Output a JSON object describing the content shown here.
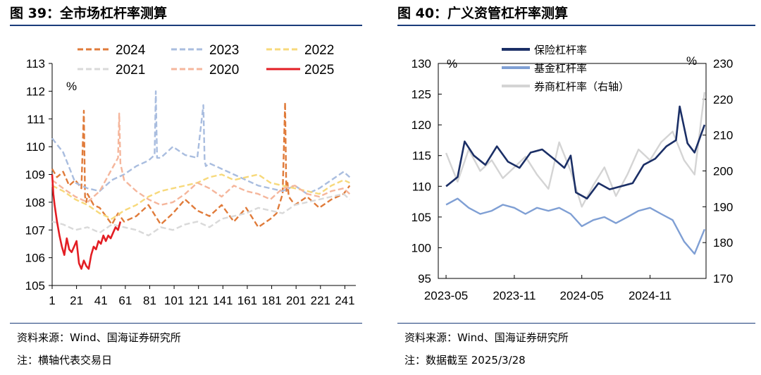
{
  "left": {
    "title": "图 39：全市场杠杆率测算",
    "source": "资料来源：Wind、国海证券研究所",
    "note": "注：横轴代表交易日",
    "chart_data": {
      "type": "line",
      "ylabel": "%",
      "ylim": [
        105,
        113
      ],
      "yticks": [
        105,
        106,
        107,
        108,
        109,
        110,
        111,
        112,
        113
      ],
      "xlim": [
        1,
        250
      ],
      "xticks": [
        1,
        21,
        41,
        61,
        81,
        101,
        121,
        141,
        161,
        181,
        201,
        221,
        241
      ],
      "legend_position": "top",
      "series": [
        {
          "name": "2024",
          "style": "dashed",
          "color": "#e07b3a",
          "x": [
            1,
            5,
            10,
            15,
            20,
            25,
            27,
            28,
            29,
            30,
            35,
            40,
            45,
            50,
            55,
            60,
            70,
            80,
            90,
            100,
            110,
            120,
            130,
            140,
            150,
            160,
            170,
            180,
            185,
            190,
            192,
            193,
            194,
            195,
            200,
            210,
            220,
            230,
            240,
            245
          ],
          "y": [
            109.2,
            108.9,
            109.1,
            108.6,
            108.8,
            108.5,
            111.3,
            108.2,
            108.0,
            108.3,
            107.9,
            107.8,
            107.5,
            107.2,
            107.6,
            107.3,
            107.5,
            107.9,
            107.2,
            107.6,
            108.1,
            107.7,
            107.5,
            107.9,
            107.3,
            107.8,
            107.1,
            107.4,
            107.6,
            108.3,
            111.6,
            108.4,
            108.7,
            108.2,
            107.9,
            108.2,
            107.8,
            108.1,
            108.3,
            108.6
          ]
        },
        {
          "name": "2023",
          "style": "dashed",
          "color": "#a9bddf",
          "x": [
            1,
            10,
            20,
            30,
            40,
            50,
            60,
            70,
            80,
            85,
            86,
            87,
            90,
            100,
            110,
            120,
            125,
            126,
            127,
            130,
            140,
            150,
            160,
            170,
            180,
            190,
            200,
            210,
            220,
            230,
            240,
            245
          ],
          "y": [
            110.3,
            109.8,
            108.7,
            108.5,
            108.4,
            108.8,
            109.0,
            109.3,
            109.5,
            109.7,
            112.0,
            109.6,
            109.6,
            110.0,
            109.7,
            109.6,
            111.5,
            109.5,
            109.3,
            109.4,
            109.2,
            109.0,
            108.8,
            108.6,
            108.5,
            108.4,
            108.6,
            108.3,
            108.5,
            108.8,
            109.1,
            108.9
          ]
        },
        {
          "name": "2022",
          "style": "dashed",
          "color": "#f7d97b",
          "x": [
            1,
            10,
            20,
            30,
            40,
            50,
            60,
            70,
            80,
            90,
            100,
            110,
            120,
            130,
            140,
            150,
            160,
            170,
            180,
            190,
            200,
            210,
            220,
            230,
            240,
            245
          ],
          "y": [
            108.6,
            108.4,
            108.1,
            107.9,
            107.6,
            107.4,
            107.7,
            107.9,
            108.2,
            108.4,
            108.5,
            108.6,
            108.7,
            108.9,
            109.0,
            108.8,
            108.9,
            109.0,
            108.7,
            108.6,
            108.5,
            108.4,
            108.3,
            108.6,
            108.8,
            108.7
          ]
        },
        {
          "name": "2021",
          "style": "dashed",
          "color": "#d9d9d9",
          "x": [
            1,
            10,
            20,
            30,
            40,
            50,
            60,
            70,
            80,
            90,
            100,
            110,
            120,
            130,
            140,
            150,
            160,
            170,
            180,
            190,
            200,
            210,
            220,
            230,
            240,
            245
          ],
          "y": [
            107.3,
            107.2,
            107.0,
            107.1,
            106.9,
            107.2,
            107.1,
            107.0,
            106.8,
            107.1,
            107.0,
            107.2,
            107.3,
            107.1,
            107.4,
            107.5,
            107.6,
            107.8,
            107.7,
            107.6,
            107.9,
            108.0,
            108.1,
            108.2,
            108.3,
            108.1
          ]
        },
        {
          "name": "2020",
          "style": "dashed",
          "color": "#f5b69c",
          "x": [
            1,
            10,
            20,
            30,
            40,
            50,
            55,
            56,
            57,
            60,
            70,
            80,
            90,
            100,
            110,
            120,
            130,
            140,
            150,
            160,
            170,
            180,
            190,
            200,
            210,
            220,
            230,
            240,
            245
          ],
          "y": [
            108.8,
            108.5,
            108.2,
            108.0,
            108.4,
            109.2,
            109.6,
            111.2,
            109.4,
            108.8,
            108.4,
            108.1,
            107.9,
            108.0,
            108.3,
            108.7,
            108.5,
            108.2,
            108.6,
            108.4,
            108.3,
            108.1,
            108.5,
            108.6,
            108.3,
            108.2,
            108.4,
            108.5,
            108.3
          ]
        },
        {
          "name": "2025",
          "style": "solid",
          "color": "#e31e24",
          "x": [
            1,
            2,
            3,
            5,
            7,
            9,
            11,
            13,
            15,
            17,
            19,
            21,
            23,
            25,
            27,
            29,
            31,
            33,
            35,
            37,
            39,
            41,
            43,
            45,
            47,
            49,
            51,
            53,
            55,
            57
          ],
          "y": [
            109.0,
            108.3,
            107.9,
            107.3,
            106.8,
            106.4,
            106.1,
            106.7,
            106.3,
            106.2,
            106.4,
            106.6,
            105.8,
            105.6,
            105.9,
            105.7,
            105.6,
            106.1,
            106.4,
            106.3,
            106.6,
            106.5,
            106.8,
            106.6,
            106.8,
            106.7,
            106.9,
            107.1,
            107.0,
            107.3
          ]
        }
      ]
    }
  },
  "right": {
    "title": "图 40：广义资管杠杆率测算",
    "source": "资料来源：Wind、国海证券研究所",
    "note": "注：数据截至 2025/3/28",
    "chart_data": {
      "type": "line",
      "ylabel_left": "%",
      "ylabel_right": "%",
      "ylim_left": [
        95,
        130
      ],
      "yticks_left": [
        95,
        100,
        105,
        110,
        115,
        120,
        125,
        130
      ],
      "ylim_right": [
        170,
        230
      ],
      "yticks_right": [
        170,
        180,
        190,
        200,
        210,
        220,
        230
      ],
      "xticks": [
        "2023-05",
        "2023-11",
        "2024-05",
        "2024-11"
      ],
      "legend_position": "top-left",
      "series": [
        {
          "name": "保险杠杆率",
          "axis": "left",
          "color": "#1b2f66",
          "x": [
            "2023-05-01",
            "2023-06-01",
            "2023-06-20",
            "2023-07-15",
            "2023-08-15",
            "2023-09-15",
            "2023-10-15",
            "2023-11-15",
            "2023-12-15",
            "2024-01-15",
            "2024-02-15",
            "2024-03-15",
            "2024-04-01",
            "2024-04-15",
            "2024-05-15",
            "2024-06-15",
            "2024-07-15",
            "2024-08-15",
            "2024-09-15",
            "2024-10-15",
            "2024-11-15",
            "2024-12-15",
            "2025-01-10",
            "2025-01-20",
            "2025-02-10",
            "2025-03-01",
            "2025-03-28"
          ],
          "y": [
            110.0,
            111.5,
            117.3,
            115.0,
            113.5,
            116.5,
            114.0,
            113.0,
            115.5,
            116.0,
            114.5,
            113.0,
            115.0,
            109.0,
            108.0,
            110.5,
            109.5,
            110.0,
            110.5,
            113.5,
            114.5,
            116.5,
            117.5,
            123.0,
            117.0,
            115.5,
            120.0
          ]
        },
        {
          "name": "基金杠杆率",
          "axis": "left",
          "color": "#7f9fd4",
          "x": [
            "2023-05-01",
            "2023-06-01",
            "2023-07-01",
            "2023-08-01",
            "2023-09-01",
            "2023-10-01",
            "2023-11-01",
            "2023-12-01",
            "2024-01-01",
            "2024-02-01",
            "2024-03-01",
            "2024-04-01",
            "2024-05-01",
            "2024-06-01",
            "2024-07-01",
            "2024-08-01",
            "2024-09-01",
            "2024-10-01",
            "2024-11-01",
            "2024-12-01",
            "2025-01-01",
            "2025-02-01",
            "2025-03-01",
            "2025-03-28"
          ],
          "y": [
            107.0,
            108.0,
            106.5,
            105.5,
            106.0,
            107.0,
            106.5,
            105.5,
            106.5,
            106.0,
            106.5,
            105.5,
            103.5,
            104.5,
            105.0,
            104.0,
            105.0,
            106.0,
            106.5,
            105.5,
            104.5,
            101.0,
            99.0,
            103.0
          ]
        },
        {
          "name": "券商杠杆率（右轴）",
          "axis": "right",
          "color": "#d4d4d4",
          "x": [
            "2023-05-01",
            "2023-06-01",
            "2023-07-01",
            "2023-08-01",
            "2023-09-01",
            "2023-10-01",
            "2023-11-01",
            "2023-12-01",
            "2024-01-01",
            "2024-02-01",
            "2024-03-01",
            "2024-04-01",
            "2024-05-01",
            "2024-06-01",
            "2024-07-01",
            "2024-08-01",
            "2024-09-01",
            "2024-10-01",
            "2024-11-01",
            "2024-12-01",
            "2025-01-01",
            "2025-02-01",
            "2025-03-01",
            "2025-03-28"
          ],
          "y": [
            205.0,
            197.0,
            206.0,
            200.0,
            203.0,
            198.0,
            201.0,
            204.0,
            199.0,
            195.0,
            208.0,
            200.0,
            190.0,
            196.0,
            201.0,
            193.0,
            199.0,
            206.0,
            203.0,
            208.0,
            211.0,
            203.0,
            199.0,
            222.0
          ]
        }
      ]
    }
  }
}
